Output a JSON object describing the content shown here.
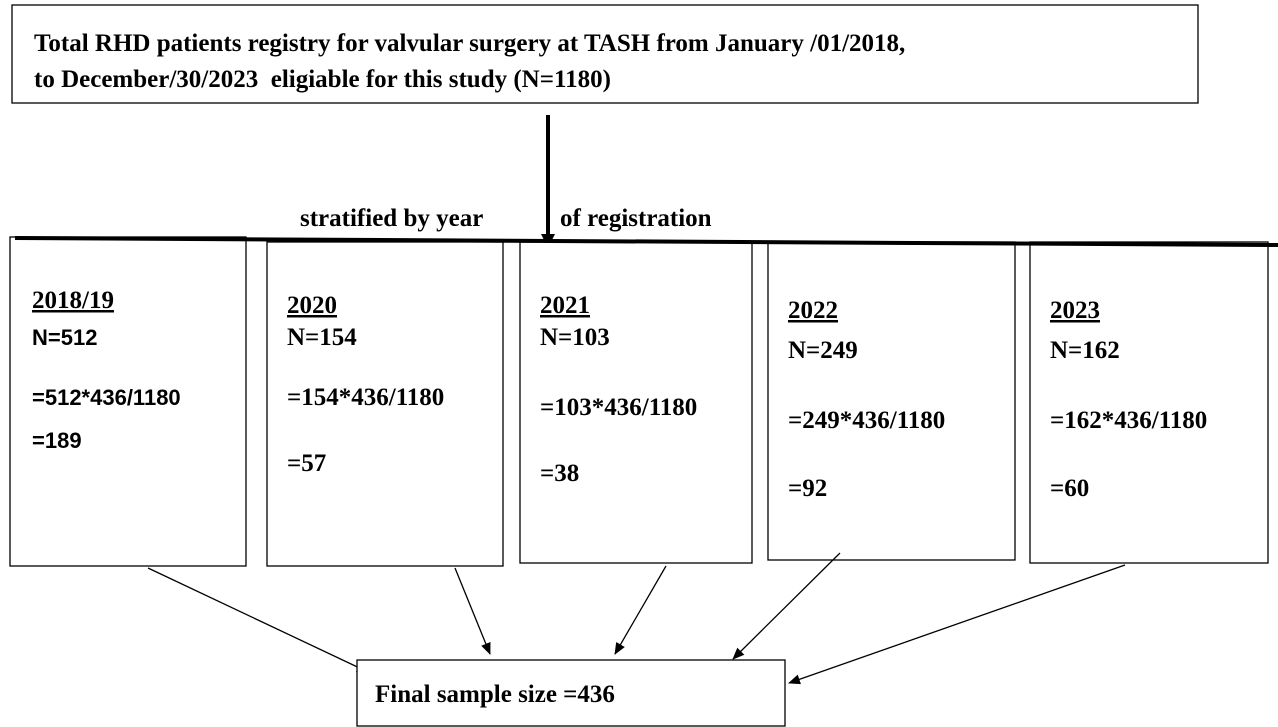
{
  "header": {
    "lines": [
      "Total RHD patients registry for valvular surgery at TASH from January /01/2018,",
      "to December/30/2023  eligiable for this study (N=1180)"
    ]
  },
  "stratification": {
    "parts": [
      "stratified by year",
      "of registration"
    ]
  },
  "strata": [
    {
      "label": "2018/19",
      "n": "N=512",
      "formula": "=512*436/1180",
      "result": "=189"
    },
    {
      "label": "2020",
      "n": "N=154",
      "formula": "=154*436/1180",
      "result": "=57"
    },
    {
      "label": "2021",
      "n": "N=103",
      "formula": "=103*436/1180",
      "result": "=38"
    },
    {
      "label": "2022",
      "n": "N=249",
      "formula": "=249*436/1180",
      "result": "=92"
    },
    {
      "label": "2023",
      "n": "N=162",
      "formula": "=162*436/1180",
      "result": "=60"
    }
  ],
  "final": {
    "label": "Final sample size =436"
  }
}
